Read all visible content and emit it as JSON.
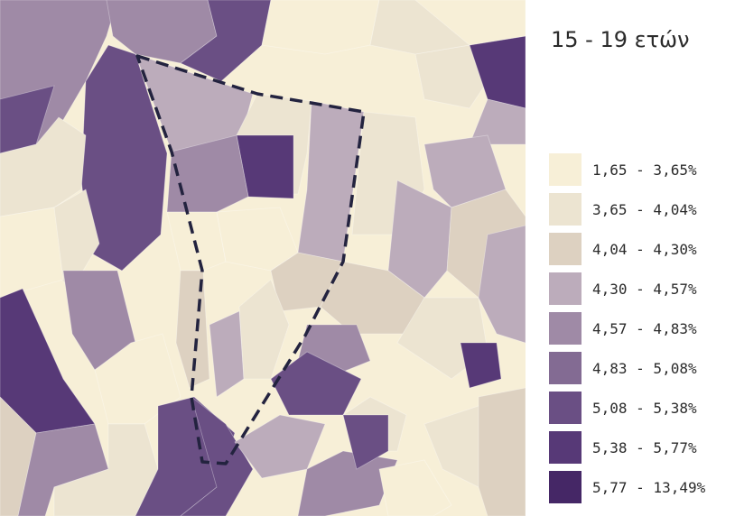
{
  "legend": {
    "title": "15 - 19 ετών",
    "classes": [
      {
        "label": "1,65 - 3,65%",
        "color": "#f7efd7"
      },
      {
        "label": "3,65 - 4,04%",
        "color": "#ece4d1"
      },
      {
        "label": "4,04 - 4,30%",
        "color": "#ddd1c1"
      },
      {
        "label": "4,30 - 4,57%",
        "color": "#bcacbb"
      },
      {
        "label": "4,57 - 4,83%",
        "color": "#9f8aa6"
      },
      {
        "label": "4,83 - 5,08%",
        "color": "#836b93"
      },
      {
        "label": "5,08 - 5,38%",
        "color": "#6a4f84"
      },
      {
        "label": "5,38 - 5,77%",
        "color": "#573977"
      },
      {
        "label": "5,77 - 13,49%",
        "color": "#452766"
      }
    ]
  },
  "map": {
    "boundary_style": "dashed",
    "boundary_color": "#23233f",
    "background_color": "#f7efd7"
  }
}
